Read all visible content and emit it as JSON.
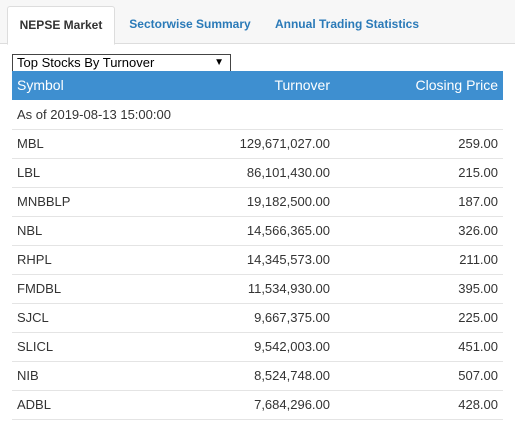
{
  "tabs": [
    "NEPSE Market",
    "Sectorwise Summary",
    "Annual Trading Statistics"
  ],
  "selector": {
    "value": "Top Stocks By Turnover",
    "arrow": "▼"
  },
  "table": {
    "headers": {
      "symbol": "Symbol",
      "turnover": "Turnover",
      "price": "Closing Price"
    },
    "as_of": "As of 2019-08-13 15:00:00",
    "rows": [
      {
        "symbol": "MBL",
        "turnover": "129,671,027.00",
        "price": "259.00"
      },
      {
        "symbol": "LBL",
        "turnover": "86,101,430.00",
        "price": "215.00"
      },
      {
        "symbol": "MNBBLP",
        "turnover": "19,182,500.00",
        "price": "187.00"
      },
      {
        "symbol": "NBL",
        "turnover": "14,566,365.00",
        "price": "326.00"
      },
      {
        "symbol": "RHPL",
        "turnover": "14,345,573.00",
        "price": "211.00"
      },
      {
        "symbol": "FMDBL",
        "turnover": "11,534,930.00",
        "price": "395.00"
      },
      {
        "symbol": "SJCL",
        "turnover": "9,667,375.00",
        "price": "225.00"
      },
      {
        "symbol": "SLICL",
        "turnover": "9,542,003.00",
        "price": "451.00"
      },
      {
        "symbol": "NIB",
        "turnover": "8,524,748.00",
        "price": "507.00"
      },
      {
        "symbol": "ADBL",
        "turnover": "7,684,296.00",
        "price": "428.00"
      }
    ]
  }
}
